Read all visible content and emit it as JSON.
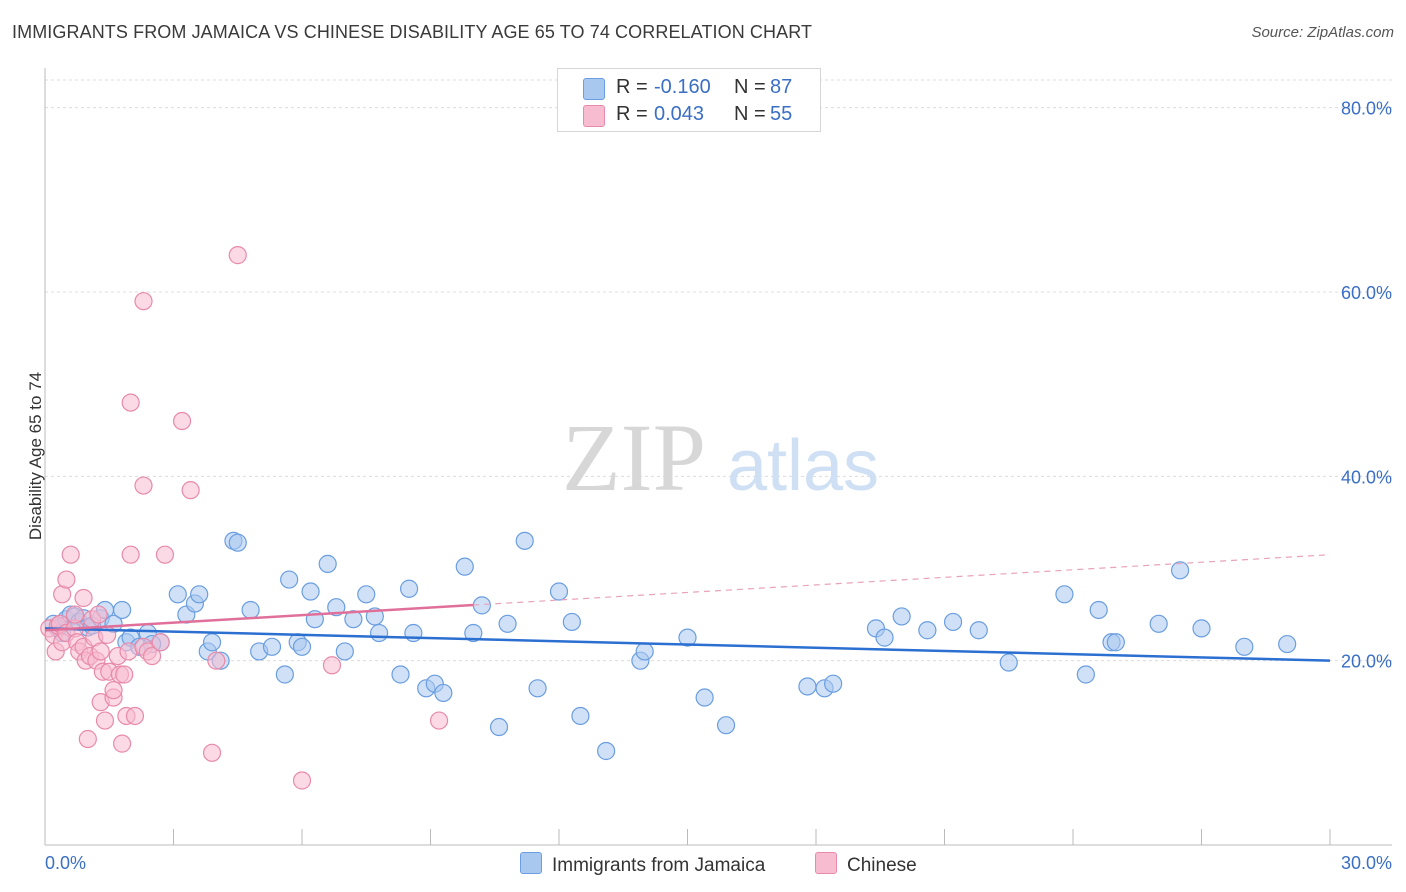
{
  "title": "IMMIGRANTS FROM JAMAICA VS CHINESE DISABILITY AGE 65 TO 74 CORRELATION CHART",
  "source": "Source: ZipAtlas.com",
  "watermark": {
    "zip": "ZIP",
    "atlas": "atlas"
  },
  "legend": {
    "rows": [
      {
        "r_label": "R =",
        "r_value": "-0.160",
        "n_label": "N =",
        "n_value": "87",
        "color": "#a9c8f0",
        "border": "#6a9ee0"
      },
      {
        "r_label": "R =",
        "r_value": "0.043",
        "n_label": "N =",
        "n_value": "55",
        "color": "#f7bcd0",
        "border": "#e88aa9"
      }
    ]
  },
  "bottom_legend": [
    {
      "label": "Immigrants from Jamaica",
      "color": "#a9c8f0",
      "border": "#6a9ee0"
    },
    {
      "label": "Chinese",
      "color": "#f7bcd0",
      "border": "#e88aa9"
    }
  ],
  "chart_data": {
    "type": "scatter",
    "ylabel": "Disability Age 65 to 74",
    "xlim": [
      0,
      30
    ],
    "ylim": [
      0,
      83
    ],
    "x_tick_labels": [
      "0.0%",
      "30.0%"
    ],
    "y_ticks": [
      20,
      40,
      60,
      80
    ],
    "y_tick_labels": [
      "20.0%",
      "40.0%",
      "60.0%",
      "80.0%"
    ],
    "grid": true,
    "series": [
      {
        "name": "Immigrants from Jamaica",
        "color": "#6a9ee0",
        "fill": "#a9c8f0",
        "trend": {
          "x": [
            0,
            30
          ],
          "y": [
            23.5,
            20.0
          ],
          "dashed_from": null
        },
        "points": [
          [
            0.2,
            24.0
          ],
          [
            0.3,
            23.5
          ],
          [
            0.4,
            23.0
          ],
          [
            0.5,
            24.5
          ],
          [
            0.6,
            25.0
          ],
          [
            0.7,
            24.8
          ],
          [
            0.8,
            24.2
          ],
          [
            0.9,
            24.6
          ],
          [
            1.0,
            23.6
          ],
          [
            1.1,
            23.8
          ],
          [
            1.3,
            24.6
          ],
          [
            1.4,
            25.5
          ],
          [
            1.6,
            24.0
          ],
          [
            1.8,
            25.5
          ],
          [
            1.9,
            22.0
          ],
          [
            2.0,
            22.5
          ],
          [
            2.2,
            21.5
          ],
          [
            2.4,
            23.0
          ],
          [
            2.7,
            22.0
          ],
          [
            2.5,
            21.8
          ],
          [
            3.1,
            27.2
          ],
          [
            3.3,
            25.0
          ],
          [
            3.5,
            26.2
          ],
          [
            3.6,
            27.2
          ],
          [
            3.8,
            21.0
          ],
          [
            3.9,
            22.0
          ],
          [
            4.1,
            20.0
          ],
          [
            4.4,
            33.0
          ],
          [
            4.5,
            32.8
          ],
          [
            4.8,
            25.5
          ],
          [
            5.0,
            21.0
          ],
          [
            5.3,
            21.5
          ],
          [
            5.6,
            18.5
          ],
          [
            5.7,
            28.8
          ],
          [
            5.9,
            22.0
          ],
          [
            6.0,
            21.5
          ],
          [
            6.2,
            27.5
          ],
          [
            6.3,
            24.5
          ],
          [
            6.6,
            30.5
          ],
          [
            6.8,
            25.8
          ],
          [
            7.0,
            21.0
          ],
          [
            7.2,
            24.5
          ],
          [
            7.5,
            27.2
          ],
          [
            7.7,
            24.8
          ],
          [
            7.8,
            23.0
          ],
          [
            8.3,
            18.5
          ],
          [
            8.5,
            27.8
          ],
          [
            8.6,
            23.0
          ],
          [
            8.9,
            17.0
          ],
          [
            9.1,
            17.5
          ],
          [
            9.3,
            16.5
          ],
          [
            9.8,
            30.2
          ],
          [
            10.2,
            26.0
          ],
          [
            10.8,
            24.0
          ],
          [
            10.6,
            12.8
          ],
          [
            11.2,
            33.0
          ],
          [
            11.5,
            17.0
          ],
          [
            12.0,
            27.5
          ],
          [
            12.3,
            24.2
          ],
          [
            12.5,
            14.0
          ],
          [
            13.1,
            10.2
          ],
          [
            13.9,
            20.0
          ],
          [
            14.0,
            21.0
          ],
          [
            15.0,
            22.5
          ],
          [
            15.4,
            16.0
          ],
          [
            15.9,
            13.0
          ],
          [
            17.8,
            17.2
          ],
          [
            18.2,
            17.0
          ],
          [
            18.4,
            17.5
          ],
          [
            19.4,
            23.5
          ],
          [
            19.6,
            22.5
          ],
          [
            20.0,
            24.8
          ],
          [
            20.6,
            23.3
          ],
          [
            21.2,
            24.2
          ],
          [
            21.8,
            23.3
          ],
          [
            22.5,
            19.8
          ],
          [
            23.8,
            27.2
          ],
          [
            24.3,
            18.5
          ],
          [
            24.6,
            25.5
          ],
          [
            24.9,
            22.0
          ],
          [
            25.0,
            22.0
          ],
          [
            26.0,
            24.0
          ],
          [
            27.0,
            23.5
          ],
          [
            28.0,
            21.5
          ],
          [
            29.0,
            21.8
          ],
          [
            26.5,
            29.8
          ],
          [
            10.0,
            23.0
          ]
        ]
      },
      {
        "name": "Chinese",
        "color": "#e88aa9",
        "fill": "#f7bcd0",
        "trend": {
          "x": [
            0,
            30
          ],
          "y": [
            23.3,
            31.5
          ],
          "dashed_from": 10
        },
        "points": [
          [
            0.1,
            23.5
          ],
          [
            0.2,
            22.8
          ],
          [
            0.25,
            21.0
          ],
          [
            0.3,
            23.8
          ],
          [
            0.35,
            24.0
          ],
          [
            0.4,
            27.2
          ],
          [
            0.4,
            22.0
          ],
          [
            0.5,
            28.8
          ],
          [
            0.5,
            23.0
          ],
          [
            0.6,
            31.5
          ],
          [
            0.7,
            23.5
          ],
          [
            0.7,
            25.0
          ],
          [
            0.75,
            22.0
          ],
          [
            0.8,
            21.0
          ],
          [
            0.9,
            26.8
          ],
          [
            0.9,
            21.5
          ],
          [
            0.95,
            20.0
          ],
          [
            1.0,
            11.5
          ],
          [
            1.05,
            20.5
          ],
          [
            1.1,
            24.5
          ],
          [
            1.15,
            22.5
          ],
          [
            1.2,
            20.0
          ],
          [
            1.25,
            25.0
          ],
          [
            1.3,
            21.0
          ],
          [
            1.3,
            15.5
          ],
          [
            1.35,
            18.8
          ],
          [
            1.4,
            13.5
          ],
          [
            1.45,
            22.8
          ],
          [
            1.5,
            18.8
          ],
          [
            1.6,
            16.0
          ],
          [
            1.6,
            16.8
          ],
          [
            1.7,
            20.5
          ],
          [
            1.75,
            18.5
          ],
          [
            1.8,
            11.0
          ],
          [
            1.85,
            18.5
          ],
          [
            1.9,
            14.0
          ],
          [
            1.95,
            21.0
          ],
          [
            2.0,
            31.5
          ],
          [
            2.0,
            48.0
          ],
          [
            2.1,
            14.0
          ],
          [
            2.3,
            21.5
          ],
          [
            2.3,
            39.0
          ],
          [
            2.3,
            59.0
          ],
          [
            2.4,
            21.0
          ],
          [
            2.5,
            20.5
          ],
          [
            2.7,
            22.0
          ],
          [
            2.8,
            31.5
          ],
          [
            3.2,
            46.0
          ],
          [
            3.4,
            38.5
          ],
          [
            3.9,
            10.0
          ],
          [
            4.0,
            20.0
          ],
          [
            4.5,
            64.0
          ],
          [
            6.0,
            7.0
          ],
          [
            6.7,
            19.5
          ],
          [
            9.2,
            13.5
          ]
        ]
      }
    ]
  }
}
